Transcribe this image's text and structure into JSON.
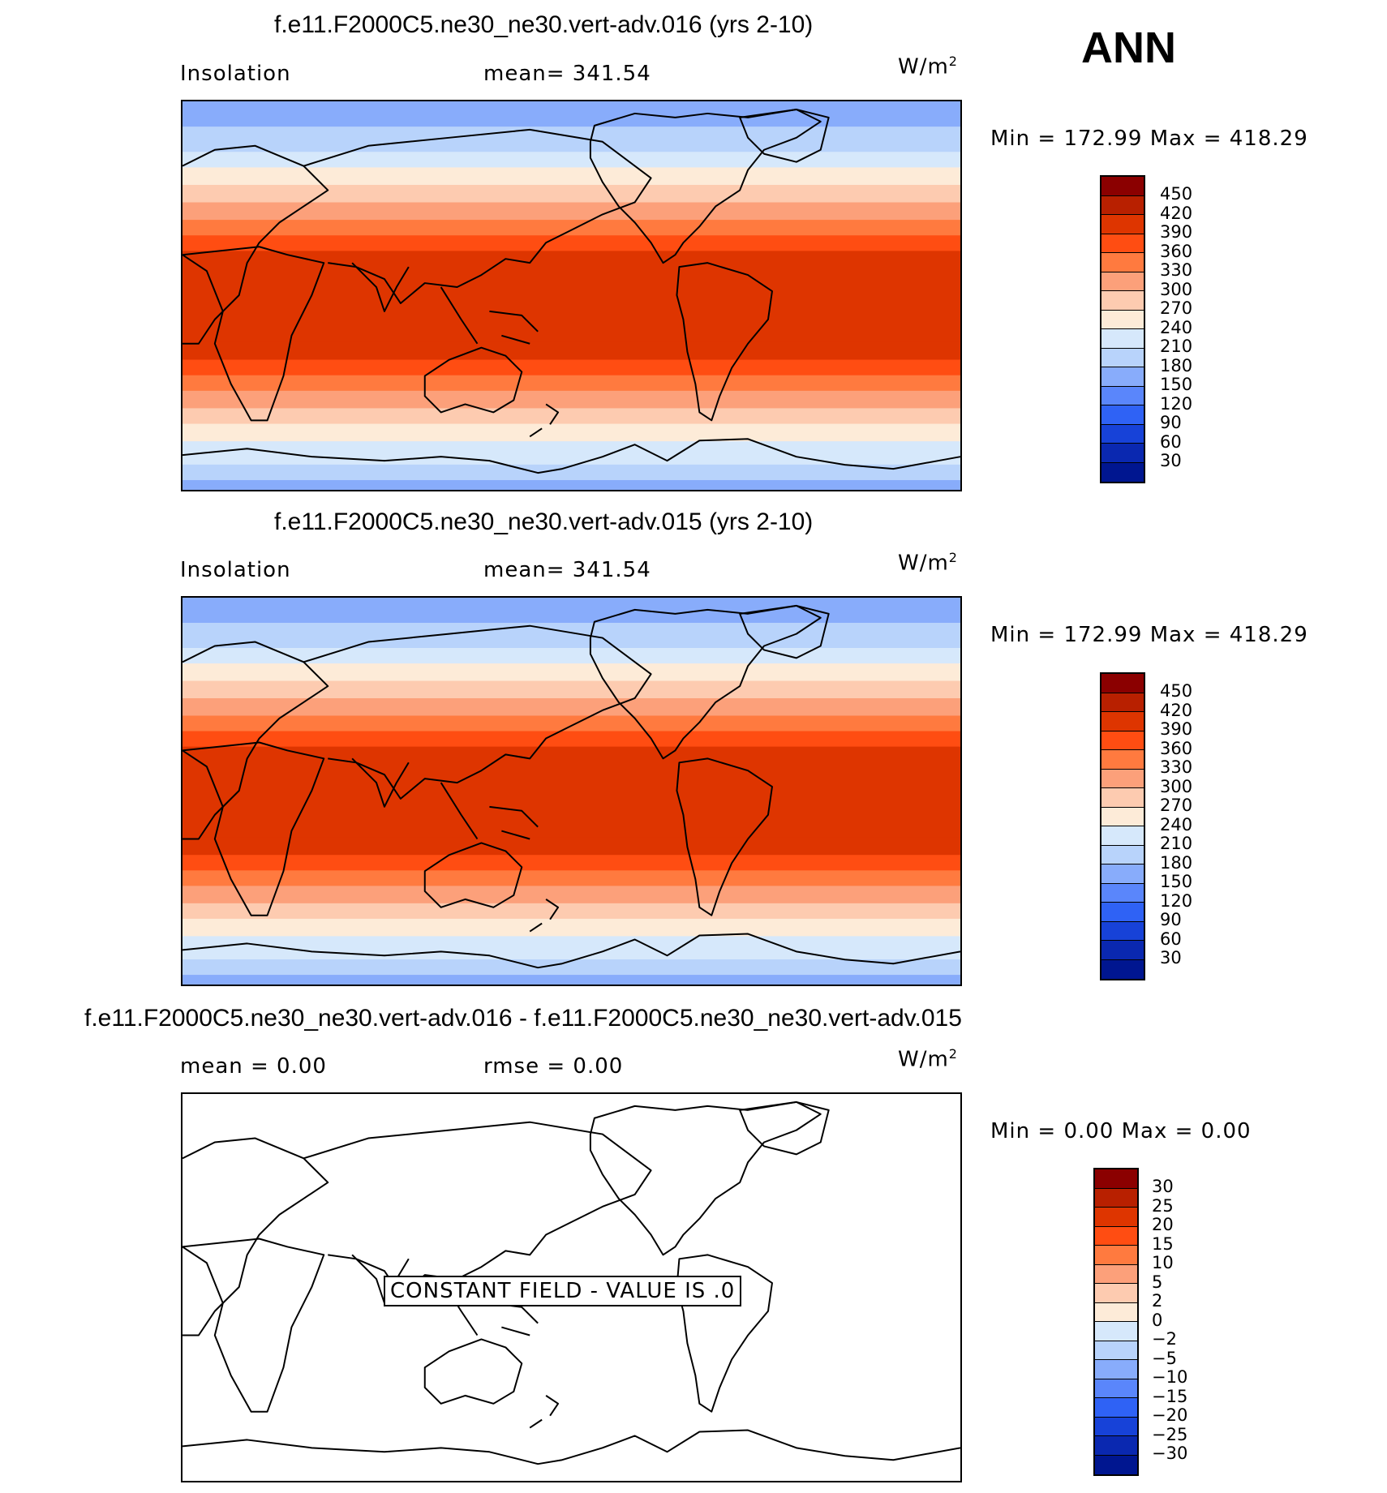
{
  "season": "ANN",
  "units": {
    "base": "W/m",
    "exp": "2"
  },
  "panels": [
    {
      "title": "f.e11.F2000C5.ne30_ne30.vert-adv.016 (yrs 2-10)",
      "var": "Insolation",
      "stat": "mean=  341.54",
      "minmax": "Min  =  172.99  Max  =  418.29"
    },
    {
      "title": "f.e11.F2000C5.ne30_ne30.vert-adv.015 (yrs 2-10)",
      "var": "Insolation",
      "stat": "mean=  341.54",
      "minmax": "Min  =  172.99  Max  =  418.29"
    },
    {
      "title": "f.e11.F2000C5.ne30_ne30.vert-adv.016 - f.e11.F2000C5.ne30_ne30.vert-adv.015",
      "stat_left": "mean  =      0.00",
      "stat_right": "rmse  =      0.00",
      "minmax": "Min  =      0.00  Max  =      0.00",
      "constant_label": "CONSTANT FIELD - VALUE IS .0"
    }
  ],
  "colorbar_abs": {
    "labels": [
      "450",
      "420",
      "390",
      "360",
      "330",
      "300",
      "270",
      "240",
      "210",
      "180",
      "150",
      "120",
      "90",
      "60",
      "30"
    ],
    "colors": [
      "#8b0000",
      "#b82000",
      "#de3500",
      "#ff4d12",
      "#ff7a3f",
      "#fca07a",
      "#fdcbb0",
      "#fdebd8",
      "#d6e8fb",
      "#b8d3fb",
      "#88acfb",
      "#5a86fb",
      "#2f62f5",
      "#1742d8",
      "#0a28b0",
      "#001690"
    ]
  },
  "colorbar_diff": {
    "labels": [
      "30",
      "25",
      "20",
      "15",
      "10",
      "5",
      "2",
      "0",
      "−2",
      "−5",
      "−10",
      "−15",
      "−20",
      "−25",
      "−30"
    ],
    "colors": [
      "#8b0000",
      "#b82000",
      "#de3500",
      "#ff4d12",
      "#ff7a3f",
      "#fca07a",
      "#fdcbb0",
      "#fdebd8",
      "#d6e8fb",
      "#b8d3fb",
      "#88acfb",
      "#5a86fb",
      "#2f62f5",
      "#1742d8",
      "#0a28b0",
      "#001690"
    ]
  },
  "chart_data": {
    "type": "heatmap",
    "map_field": "zonal bands (insolation, latitude-dependent)",
    "band_colors_north_to_south": [
      "#88acfb",
      "#b8d3fb",
      "#d6e8fb",
      "#fdebd8",
      "#fdcbb0",
      "#fca07a",
      "#ff7a3f",
      "#ff4d12",
      "#de3500",
      "#de3500",
      "#ff4d12",
      "#ff7a3f",
      "#fca07a",
      "#fdcbb0",
      "#fdebd8",
      "#d6e8fb",
      "#b8d3fb",
      "#88acfb"
    ]
  }
}
